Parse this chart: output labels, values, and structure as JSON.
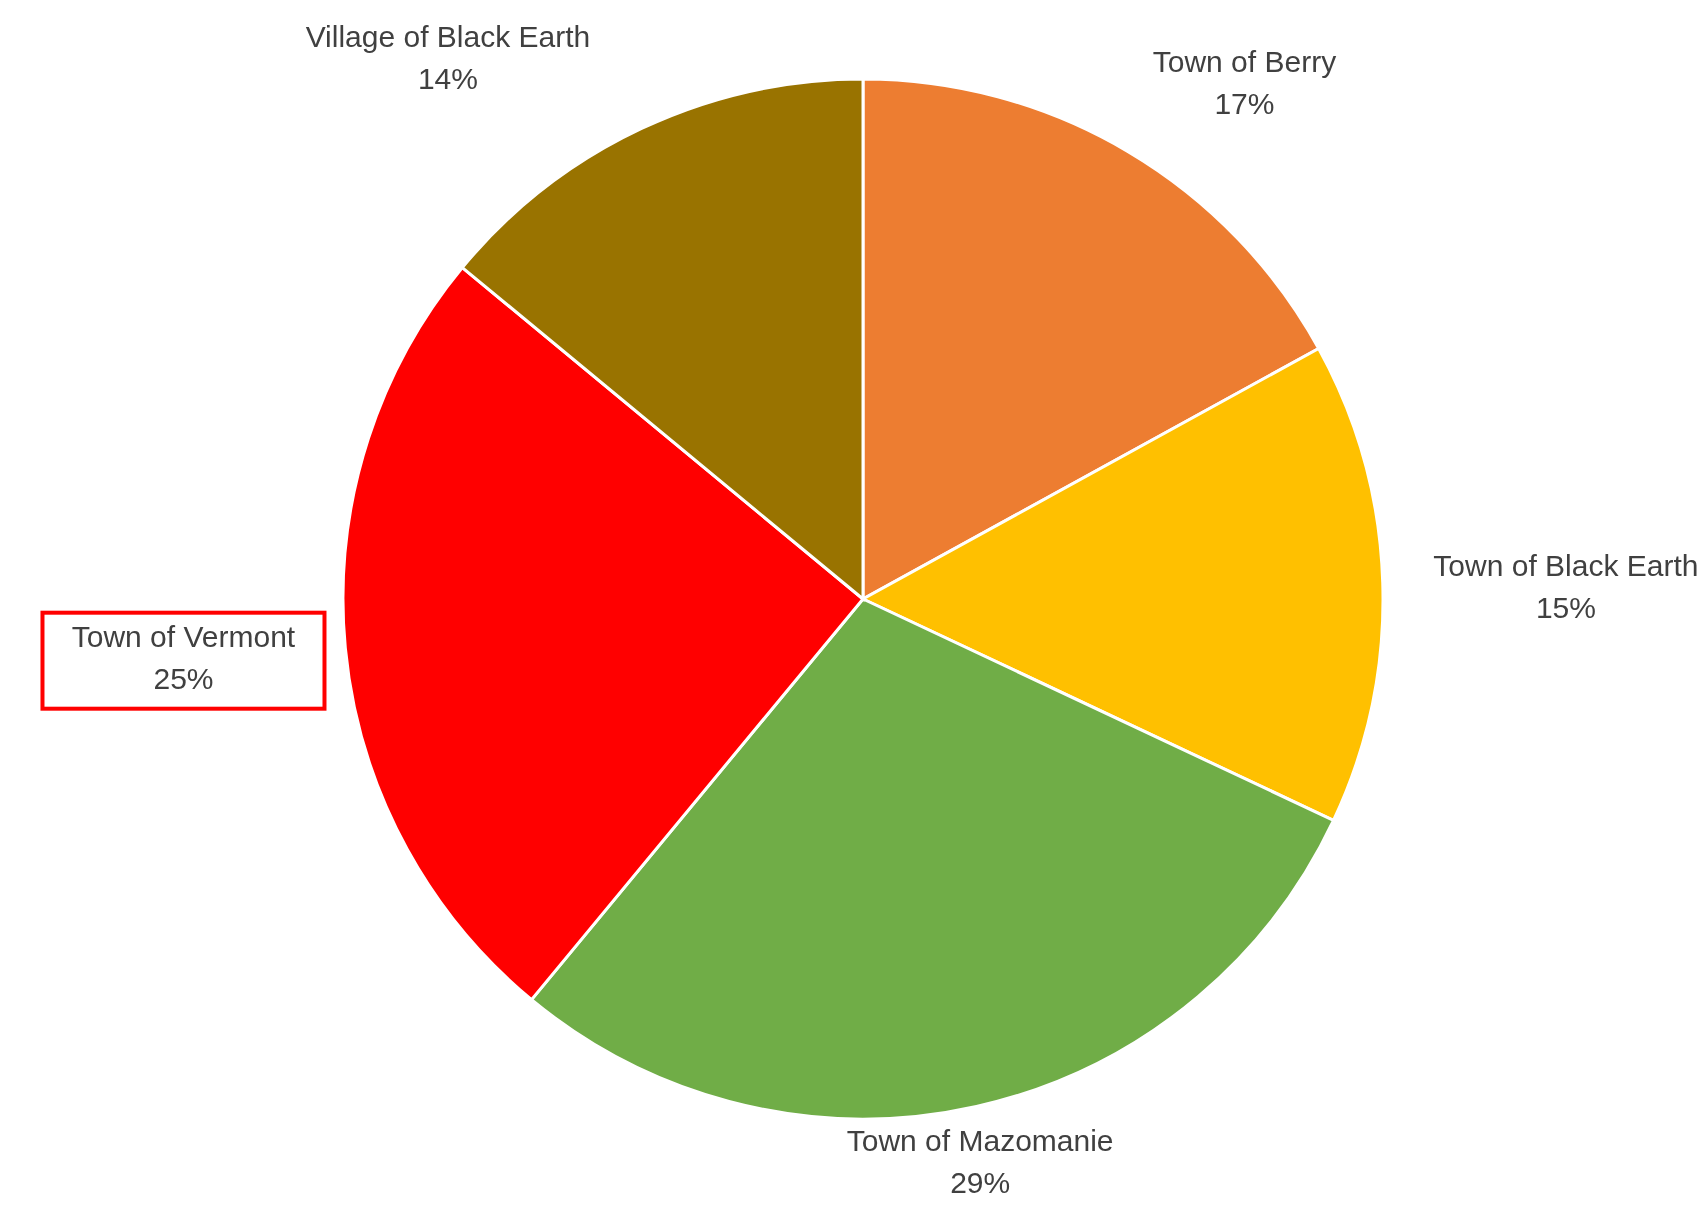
{
  "chart_data": {
    "type": "pie",
    "categories": [
      "Town of Berry",
      "Town of Black Earth",
      "Town of Mazomanie",
      "Town of Vermont",
      "Village of Black Earth"
    ],
    "values": [
      17,
      15,
      29,
      25,
      14
    ],
    "value_labels": [
      "17%",
      "15%",
      "29%",
      "25%",
      "14%"
    ],
    "colors": [
      "#ed7d31",
      "#ffc000",
      "#70ad47",
      "#ff0000",
      "#997300"
    ]
  }
}
